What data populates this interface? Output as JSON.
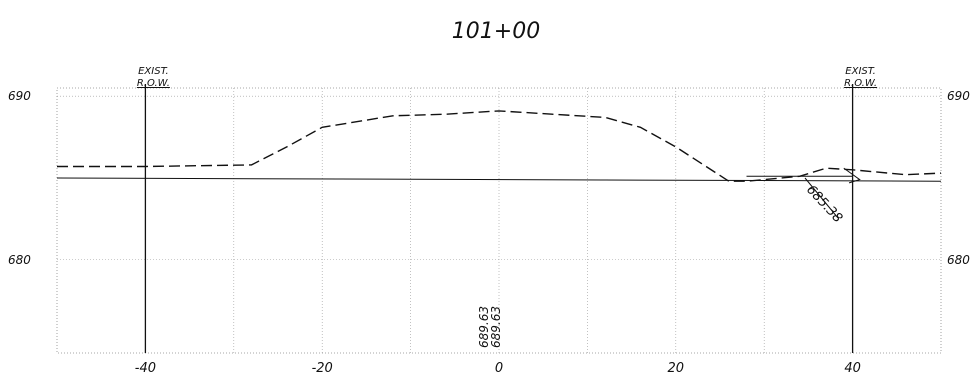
{
  "title": "101+00",
  "axes": {
    "x_ticks": [
      {
        "value": -40,
        "label": "-40"
      },
      {
        "value": -20,
        "label": "-20"
      },
      {
        "value": 0,
        "label": "0"
      },
      {
        "value": 20,
        "label": "20"
      },
      {
        "value": 40,
        "label": "40"
      }
    ],
    "y_ticks": [
      {
        "value": 690,
        "label": "690"
      },
      {
        "value": 680,
        "label": "680"
      }
    ],
    "x_range": [
      -50,
      50
    ],
    "y_range": [
      674.3,
      690.5
    ]
  },
  "row_markers": [
    {
      "offset": -40,
      "label_top": "EXIST.",
      "label_bottom": "R.O.W."
    },
    {
      "offset": 40,
      "label_top": "EXIST.",
      "label_bottom": "R.O.W."
    }
  ],
  "annotations": {
    "centerline_elev_1": "689.63",
    "centerline_elev_2": "689.63",
    "right_elev": "685.38"
  },
  "chart_data": {
    "type": "line",
    "title": "101+00",
    "xlabel": "",
    "ylabel": "",
    "xlim": [
      -50,
      50
    ],
    "ylim": [
      674.3,
      690.5
    ],
    "grid": true,
    "series": [
      {
        "style": "dashed",
        "x": [
          -50,
          -40,
          -28,
          -24,
          -20,
          -12,
          -6,
          0,
          6,
          12,
          16,
          20,
          26,
          28,
          34,
          37,
          40,
          46,
          50
        ],
        "y": [
          685.7,
          685.7,
          685.8,
          686.9,
          688.1,
          688.8,
          688.9,
          689.1,
          688.9,
          688.7,
          688.1,
          686.9,
          684.8,
          684.8,
          685.1,
          685.6,
          685.5,
          685.2,
          685.3
        ]
      },
      {
        "style": "solid",
        "x": [
          -50,
          50
        ],
        "y": [
          685.0,
          684.8
        ]
      },
      {
        "style": "solid",
        "x": [
          28,
          40
        ],
        "y": [
          685.1,
          685.1
        ]
      }
    ]
  }
}
